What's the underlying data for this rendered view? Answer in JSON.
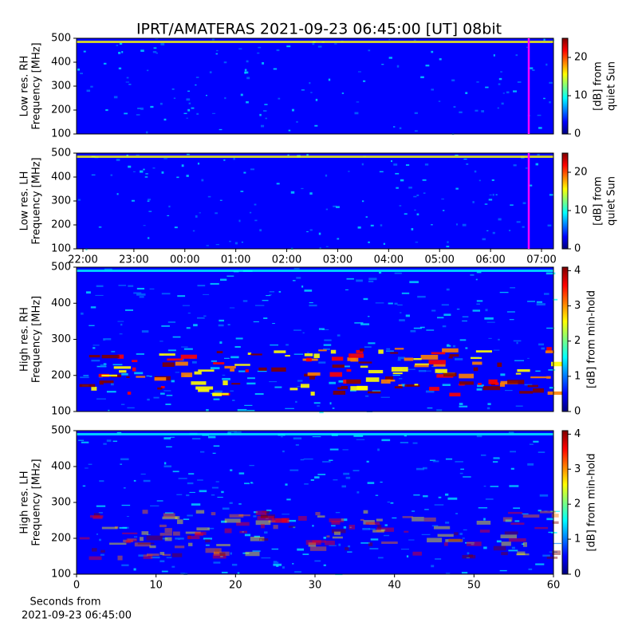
{
  "chart_data": [
    {
      "type": "heatmap",
      "title": "IPRT/AMATERAS 2021-09-23 06:45:00 [UT]   08bit",
      "ylabel": [
        "Low res. RH",
        "Frequency [MHz]"
      ],
      "ylim": [
        100,
        500
      ],
      "yticks": [
        100,
        200,
        300,
        400,
        500
      ],
      "xlim": [
        21.875,
        31.235
      ],
      "marker_x": 30.75,
      "marker_color": "#ff00ff",
      "colorbar": {
        "label": [
          "[dB] from",
          "quiet Sun"
        ],
        "lim": [
          0,
          25
        ],
        "ticks": [
          0,
          10,
          20
        ],
        "colors": [
          "#00007f",
          "#0000ff",
          "#007fff",
          "#00ffff",
          "#7fff7f",
          "#ffff00",
          "#ff7f00",
          "#ff0000",
          "#7f0000"
        ]
      }
    },
    {
      "type": "heatmap",
      "ylabel": [
        "Low res. LH",
        "Frequency [MHz]"
      ],
      "ylim": [
        100,
        500
      ],
      "yticks": [
        100,
        200,
        300,
        400,
        500
      ],
      "xlim": [
        21.875,
        31.235
      ],
      "xticks": [
        {
          "value": 22,
          "label": "22:00"
        },
        {
          "value": 23,
          "label": "23:00"
        },
        {
          "value": 24,
          "label": "00:00"
        },
        {
          "value": 25,
          "label": "01:00"
        },
        {
          "value": 26,
          "label": "02:00"
        },
        {
          "value": 27,
          "label": "03:00"
        },
        {
          "value": 28,
          "label": "04:00"
        },
        {
          "value": 29,
          "label": "05:00"
        },
        {
          "value": 30,
          "label": "06:00"
        },
        {
          "value": 31,
          "label": "07:00"
        }
      ],
      "marker_x": 30.75,
      "marker_color": "#ff00ff",
      "colorbar": {
        "label": [
          "[dB] from",
          "quiet Sun"
        ],
        "lim": [
          0,
          25
        ],
        "ticks": [
          0,
          10,
          20
        ],
        "colors": [
          "#00007f",
          "#0000ff",
          "#007fff",
          "#00ffff",
          "#7fff7f",
          "#ffff00",
          "#ff7f00",
          "#ff0000",
          "#7f0000"
        ]
      }
    },
    {
      "type": "heatmap",
      "ylabel": [
        "High res. RH",
        "Frequency [MHz]"
      ],
      "ylim": [
        100,
        500
      ],
      "yticks": [
        100,
        200,
        300,
        400,
        500
      ],
      "xlim": [
        0,
        60
      ],
      "colorbar": {
        "label": [
          "[dB] from min-hold"
        ],
        "lim": [
          0,
          4.1
        ],
        "ticks": [
          0,
          1,
          2,
          3,
          4
        ],
        "colors": [
          "#00007f",
          "#0000ff",
          "#007fff",
          "#00ffff",
          "#7fff7f",
          "#ffff00",
          "#ff7f00",
          "#ff0000",
          "#7f0000"
        ]
      }
    },
    {
      "type": "heatmap",
      "ylabel": [
        "High res. LH",
        "Frequency [MHz]"
      ],
      "xlabel": [
        "Seconds from",
        "2021-09-23 06:45:00"
      ],
      "ylim": [
        100,
        500
      ],
      "yticks": [
        100,
        200,
        300,
        400,
        500
      ],
      "xlim": [
        0,
        60
      ],
      "xticks": [
        0,
        10,
        20,
        30,
        40,
        50,
        60
      ],
      "colorbar": {
        "label": [
          "[dB] from min-hold"
        ],
        "lim": [
          0,
          4.1
        ],
        "ticks": [
          0,
          1,
          2,
          3,
          4
        ],
        "colors": [
          "#00007f",
          "#0000ff",
          "#007fff",
          "#00ffff",
          "#7fff7f",
          "#ffff00",
          "#ff7f00",
          "#ff0000",
          "#7f0000"
        ]
      }
    }
  ]
}
